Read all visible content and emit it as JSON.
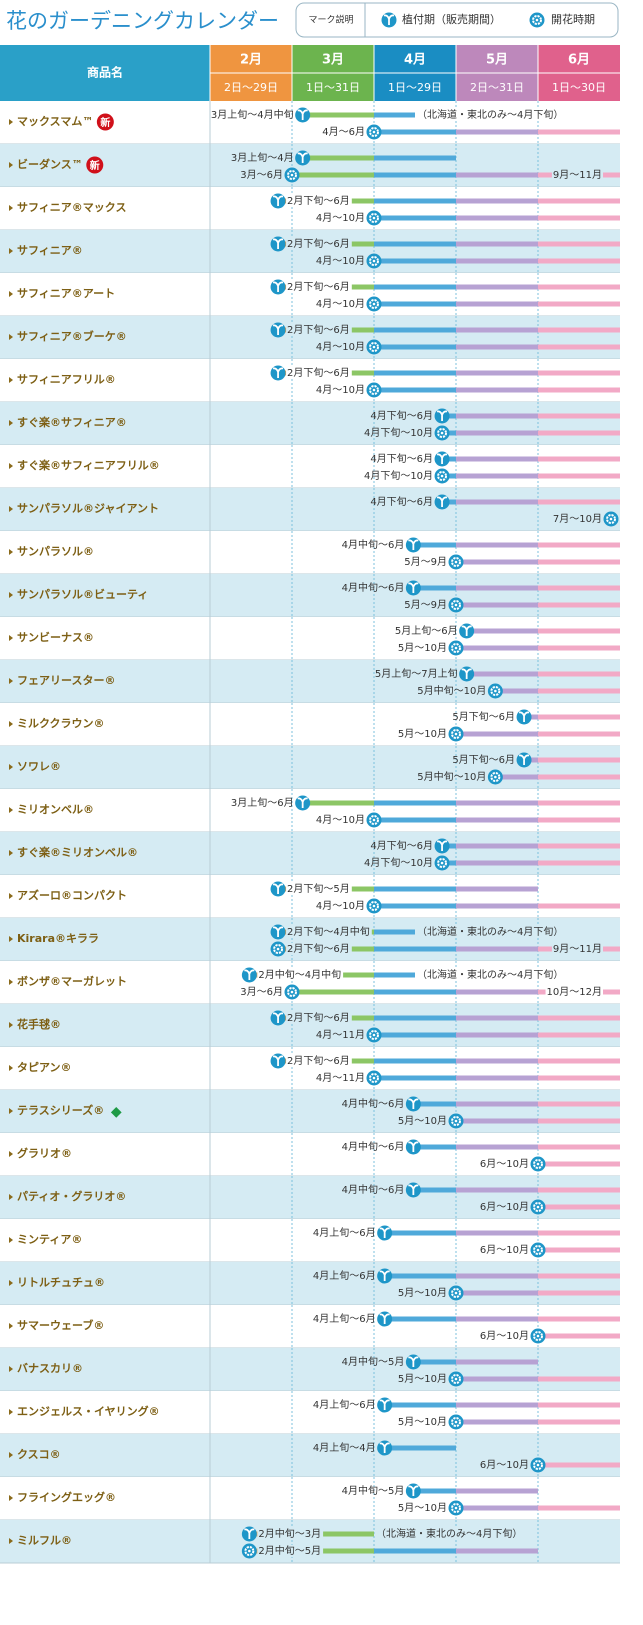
{
  "title": "花のガーデニングカレンダー",
  "legend": {
    "heading": "マーク説明",
    "plant": "植付期（販売期間）",
    "flower": "開花時期"
  },
  "header": {
    "name": "商品名"
  },
  "xlim": [
    2,
    7
  ],
  "months": [
    {
      "name": "2月",
      "range": "2日〜29日",
      "color": "#ef9540",
      "bar_color": "#f0a24a"
    },
    {
      "name": "3月",
      "range": "1日〜31日",
      "color": "#6cb44e",
      "bar_color": "#8cc665"
    },
    {
      "name": "4月",
      "range": "1日〜29日",
      "color": "#1a8dc3",
      "bar_color": "#4fa9da"
    },
    {
      "name": "5月",
      "range": "2日〜31日",
      "color": "#bd88bb",
      "bar_color": "#b7a2d3"
    },
    {
      "name": "6月",
      "range": "1日〜30日",
      "color": "#e0618c",
      "bar_color": "#f2a9c6"
    }
  ],
  "rows": [
    {
      "name": "マックスマム™",
      "badge": "新",
      "plant": {
        "label": "3月上旬〜4月中旬",
        "start": 3.13,
        "end": 4.5,
        "note": "（北海道・東北のみ〜4月下旬）"
      },
      "flower": {
        "label": "4月〜6月",
        "start": 4,
        "end": 7
      }
    },
    {
      "name": "ビーダンス™",
      "badge": "新",
      "plant": {
        "label": "3月上旬〜4月",
        "start": 3.13,
        "end": 5
      },
      "flower": {
        "label": "3月〜6月",
        "start": 3,
        "end": 7,
        "extra": "9月〜11月"
      }
    },
    {
      "name": "サフィニア®マックス",
      "plant": {
        "label": "2月下旬〜6月",
        "start": 2.83,
        "end": 7
      },
      "flower": {
        "label": "4月〜10月",
        "start": 4,
        "end": 7
      }
    },
    {
      "name": "サフィニア®",
      "plant": {
        "label": "2月下旬〜6月",
        "start": 2.83,
        "end": 7
      },
      "flower": {
        "label": "4月〜10月",
        "start": 4,
        "end": 7
      }
    },
    {
      "name": "サフィニア®アート",
      "plant": {
        "label": "2月下旬〜6月",
        "start": 2.83,
        "end": 7
      },
      "flower": {
        "label": "4月〜10月",
        "start": 4,
        "end": 7
      }
    },
    {
      "name": "サフィニア®ブーケ®",
      "plant": {
        "label": "2月下旬〜6月",
        "start": 2.83,
        "end": 7
      },
      "flower": {
        "label": "4月〜10月",
        "start": 4,
        "end": 7
      }
    },
    {
      "name": "サフィニアフリル®",
      "plant": {
        "label": "2月下旬〜6月",
        "start": 2.83,
        "end": 7
      },
      "flower": {
        "label": "4月〜10月",
        "start": 4,
        "end": 7
      }
    },
    {
      "name": "すぐ楽®サフィニア®",
      "plant": {
        "label": "4月下旬〜6月",
        "start": 4.83,
        "end": 7
      },
      "flower": {
        "label": "4月下旬〜10月",
        "start": 4.83,
        "end": 7
      }
    },
    {
      "name": "すぐ楽®サフィニアフリル®",
      "plant": {
        "label": "4月下旬〜6月",
        "start": 4.83,
        "end": 7
      },
      "flower": {
        "label": "4月下旬〜10月",
        "start": 4.83,
        "end": 7
      }
    },
    {
      "name": "サンパラソル®ジャイアント",
      "plant": {
        "label": "4月下旬〜6月",
        "start": 4.83,
        "end": 7
      },
      "flower": {
        "label": "7月〜10月",
        "start": 7,
        "end": 7
      }
    },
    {
      "name": "サンパラソル®",
      "plant": {
        "label": "4月中旬〜6月",
        "start": 4.48,
        "end": 7
      },
      "flower": {
        "label": "5月〜9月",
        "start": 5,
        "end": 7
      }
    },
    {
      "name": "サンパラソル®ビューティ",
      "plant": {
        "label": "4月中旬〜6月",
        "start": 4.48,
        "end": 7
      },
      "flower": {
        "label": "5月〜9月",
        "start": 5,
        "end": 7
      }
    },
    {
      "name": "サンビーナス®",
      "plant": {
        "label": "5月上旬〜6月",
        "start": 5.13,
        "end": 7
      },
      "flower": {
        "label": "5月〜10月",
        "start": 5,
        "end": 7
      }
    },
    {
      "name": "フェアリースター®",
      "plant": {
        "label": "5月上旬〜7月上旬",
        "start": 5.13,
        "end": 7
      },
      "flower": {
        "label": "5月中旬〜10月",
        "start": 5.48,
        "end": 7
      }
    },
    {
      "name": "ミルククラウン®",
      "plant": {
        "label": "5月下旬〜6月",
        "start": 5.83,
        "end": 7
      },
      "flower": {
        "label": "5月〜10月",
        "start": 5,
        "end": 7
      }
    },
    {
      "name": "ソワレ®",
      "plant": {
        "label": "5月下旬〜6月",
        "start": 5.83,
        "end": 7
      },
      "flower": {
        "label": "5月中旬〜10月",
        "start": 5.48,
        "end": 7
      }
    },
    {
      "name": "ミリオンベル®",
      "plant": {
        "label": "3月上旬〜6月",
        "start": 3.13,
        "end": 7
      },
      "flower": {
        "label": "4月〜10月",
        "start": 4,
        "end": 7
      }
    },
    {
      "name": "すぐ楽®ミリオンベル®",
      "plant": {
        "label": "4月下旬〜6月",
        "start": 4.83,
        "end": 7
      },
      "flower": {
        "label": "4月下旬〜10月",
        "start": 4.83,
        "end": 7
      }
    },
    {
      "name": "アズーロ®コンパクト",
      "plant": {
        "label": "2月下旬〜5月",
        "start": 2.83,
        "end": 6
      },
      "flower": {
        "label": "4月〜10月",
        "start": 4,
        "end": 7
      }
    },
    {
      "name": "Kirara®キララ",
      "plant": {
        "label": "2月下旬〜4月中旬",
        "start": 2.83,
        "end": 4.5,
        "note": "（北海道・東北のみ〜4月下旬）"
      },
      "flower": {
        "label": "2月下旬〜6月",
        "start": 2.83,
        "end": 7,
        "extra": "9月〜11月"
      }
    },
    {
      "name": "ボンザ®マーガレット",
      "plant": {
        "label": "2月中旬〜4月中旬",
        "start": 2.48,
        "end": 4.5,
        "note": "（北海道・東北のみ〜4月下旬）"
      },
      "flower": {
        "label": "3月〜6月",
        "start": 3,
        "end": 7,
        "extra": "10月〜12月"
      }
    },
    {
      "name": "花手毬®",
      "plant": {
        "label": "2月下旬〜6月",
        "start": 2.83,
        "end": 7
      },
      "flower": {
        "label": "4月〜11月",
        "start": 4,
        "end": 7
      }
    },
    {
      "name": "タピアン®",
      "plant": {
        "label": "2月下旬〜6月",
        "start": 2.83,
        "end": 7
      },
      "flower": {
        "label": "4月〜11月",
        "start": 4,
        "end": 7
      }
    },
    {
      "name": "テラスシリーズ®",
      "badge": "◆",
      "plant": {
        "label": "4月中旬〜6月",
        "start": 4.48,
        "end": 7
      },
      "flower": {
        "label": "5月〜10月",
        "start": 5,
        "end": 7
      }
    },
    {
      "name": "グラリオ®",
      "plant": {
        "label": "4月中旬〜6月",
        "start": 4.48,
        "end": 7
      },
      "flower": {
        "label": "6月〜10月",
        "start": 6,
        "end": 7
      }
    },
    {
      "name": "パティオ・グラリオ®",
      "plant": {
        "label": "4月中旬〜6月",
        "start": 4.48,
        "end": 7
      },
      "flower": {
        "label": "6月〜10月",
        "start": 6,
        "end": 7
      }
    },
    {
      "name": "ミンティア®",
      "plant": {
        "label": "4月上旬〜6月",
        "start": 4.13,
        "end": 7
      },
      "flower": {
        "label": "6月〜10月",
        "start": 6,
        "end": 7
      }
    },
    {
      "name": "リトルチュチュ®",
      "plant": {
        "label": "4月上旬〜6月",
        "start": 4.13,
        "end": 7
      },
      "flower": {
        "label": "5月〜10月",
        "start": 5,
        "end": 7
      }
    },
    {
      "name": "サマーウェーブ®",
      "plant": {
        "label": "4月上旬〜6月",
        "start": 4.13,
        "end": 7
      },
      "flower": {
        "label": "6月〜10月",
        "start": 6,
        "end": 7
      }
    },
    {
      "name": "バナスカリ®",
      "plant": {
        "label": "4月中旬〜5月",
        "start": 4.48,
        "end": 6
      },
      "flower": {
        "label": "5月〜10月",
        "start": 5,
        "end": 7
      }
    },
    {
      "name": "エンジェルス・イヤリング®",
      "plant": {
        "label": "4月上旬〜6月",
        "start": 4.13,
        "end": 7
      },
      "flower": {
        "label": "5月〜10月",
        "start": 5,
        "end": 7
      }
    },
    {
      "name": "クスコ®",
      "plant": {
        "label": "4月上旬〜4月",
        "start": 4.13,
        "end": 5
      },
      "flower": {
        "label": "6月〜10月",
        "start": 6,
        "end": 7
      }
    },
    {
      "name": "フライングエッグ®",
      "plant": {
        "label": "4月中旬〜5月",
        "start": 4.48,
        "end": 6
      },
      "flower": {
        "label": "5月〜10月",
        "start": 5,
        "end": 7
      }
    },
    {
      "name": "ミルフル®",
      "plant": {
        "label": "2月中旬〜3月",
        "start": 2.48,
        "end": 4,
        "note": "（北海道・東北のみ〜4月下旬）"
      },
      "flower": {
        "label": "2月中旬〜5月",
        "start": 2.48,
        "end": 6
      }
    }
  ]
}
